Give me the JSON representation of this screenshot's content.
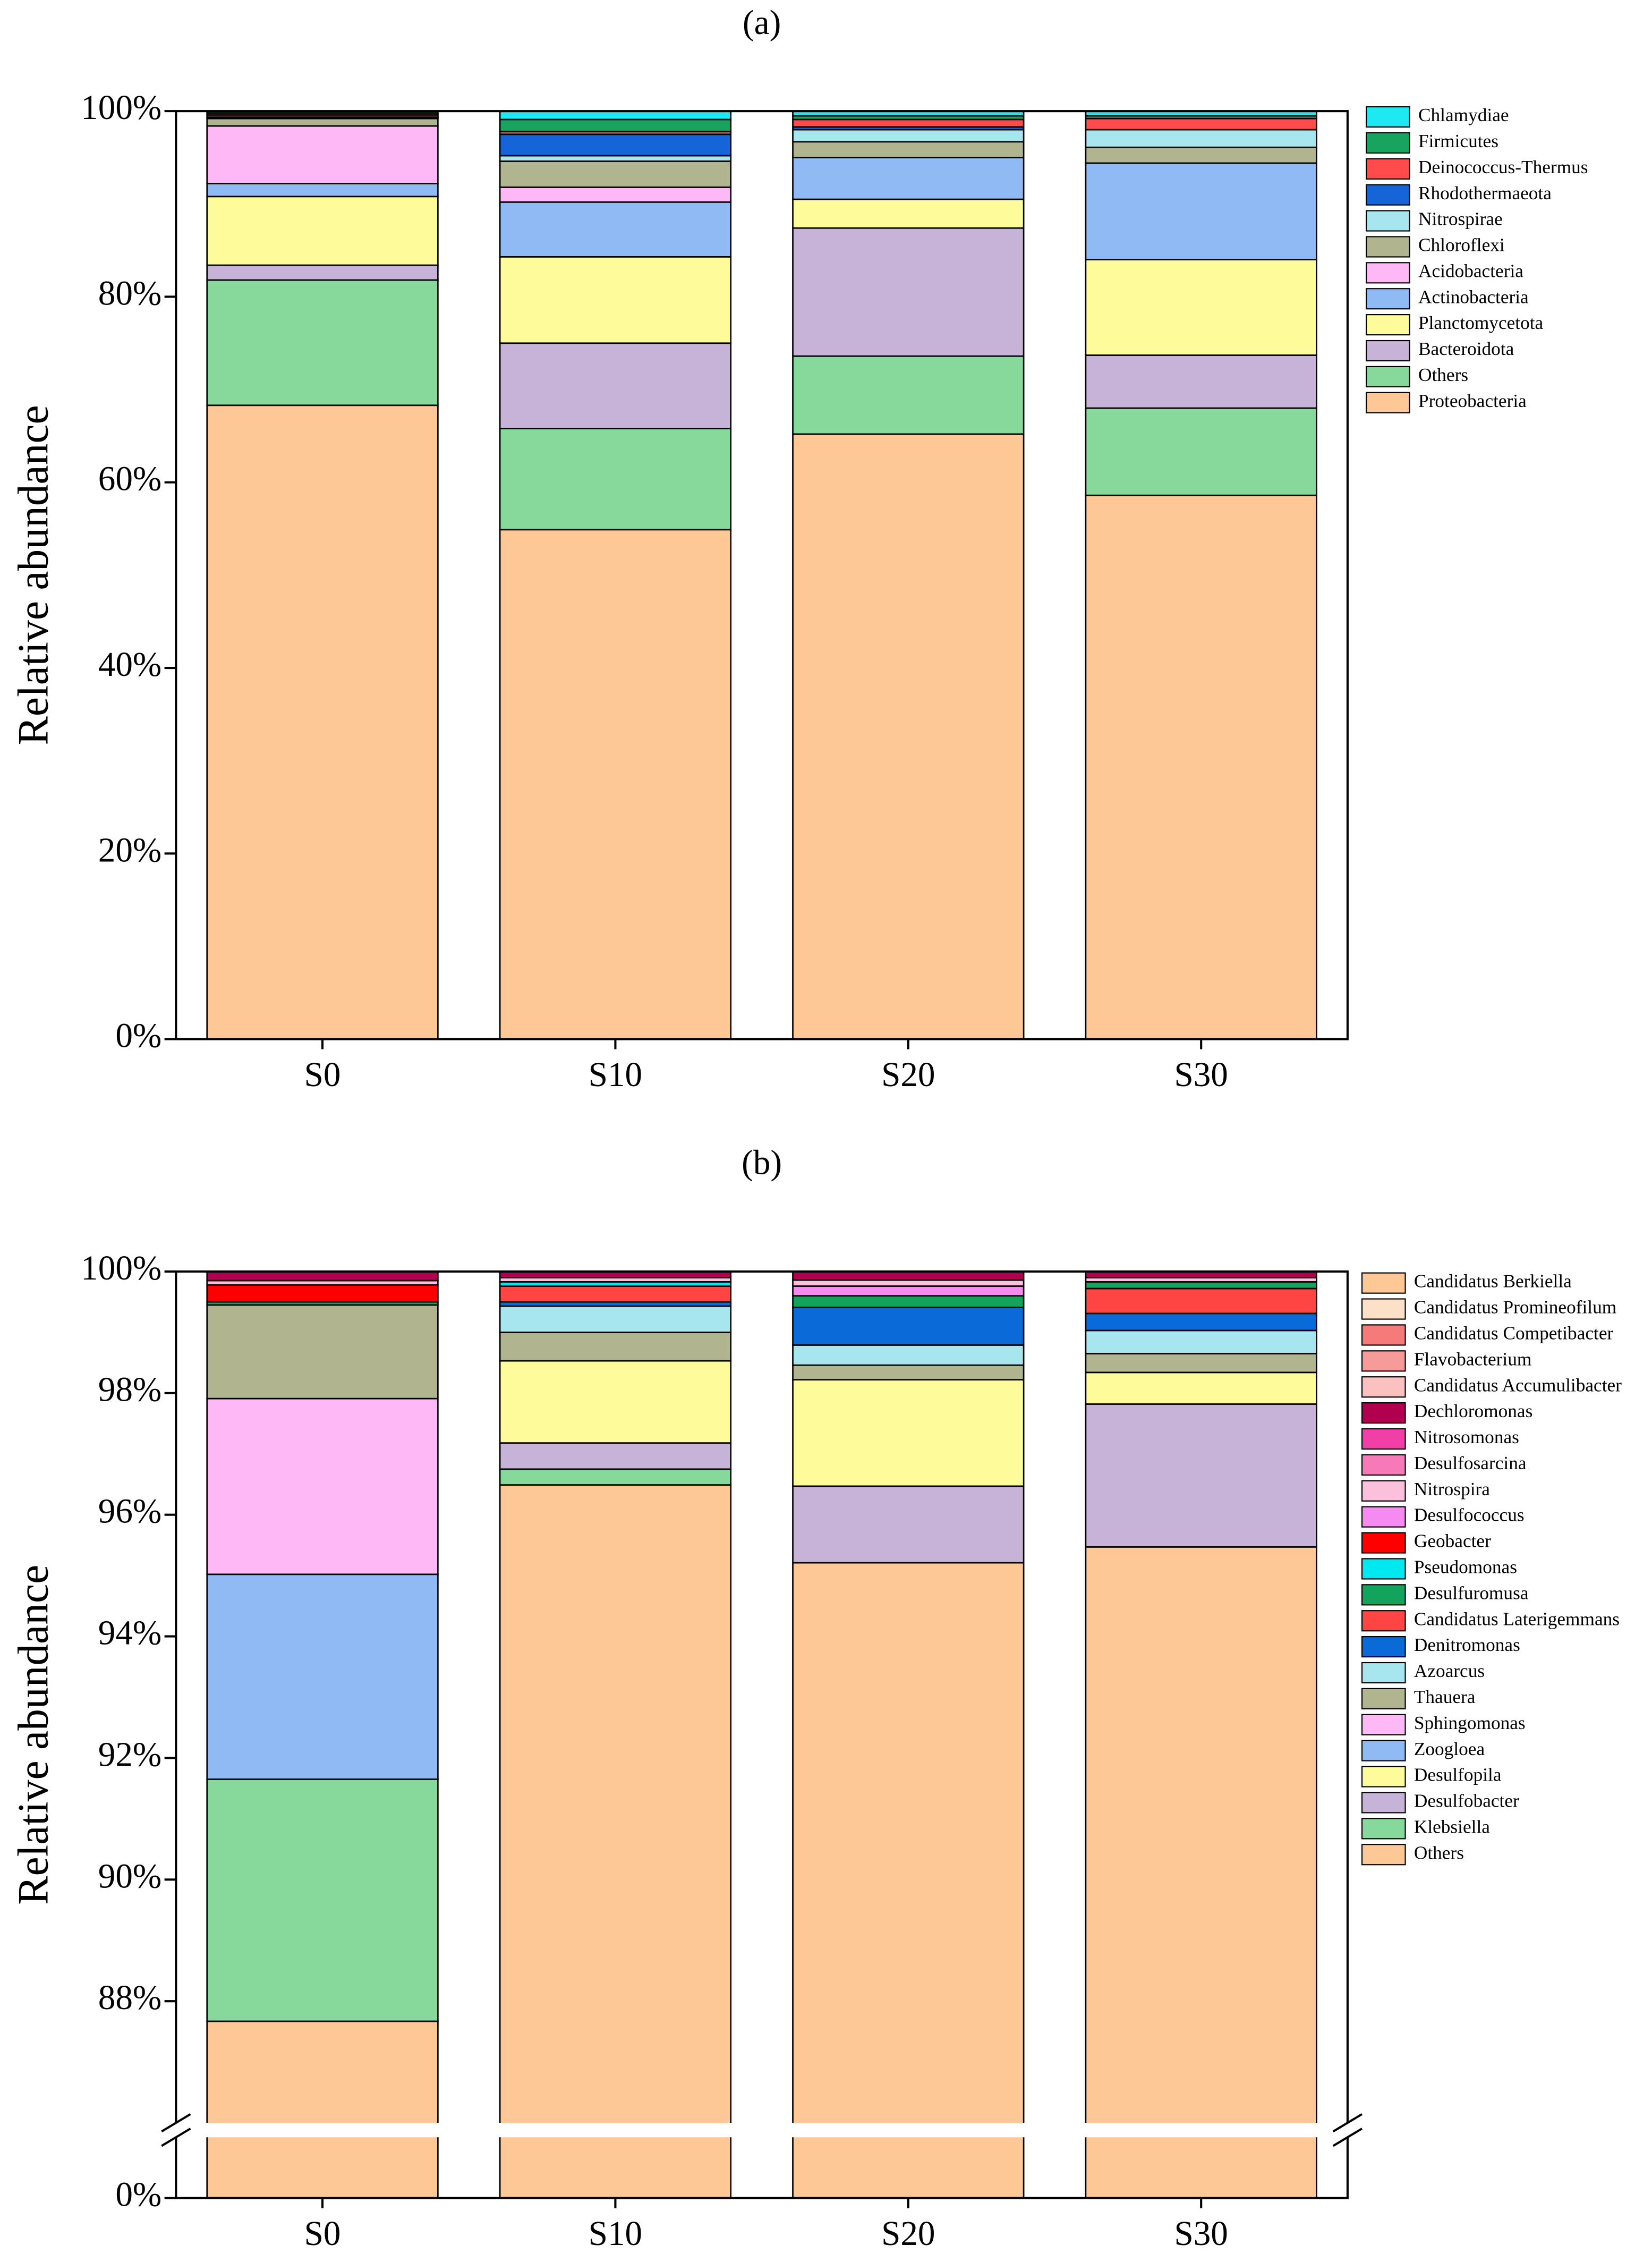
{
  "chart_data": [
    {
      "type": "stacked_bar",
      "title": "(a)",
      "y_label": "Relative abundance",
      "categories": [
        "S0",
        "S10",
        "S20",
        "S30"
      ],
      "ylim": [
        0,
        100
      ],
      "yticks": [
        {
          "value": 0,
          "label": "0%"
        },
        {
          "value": 20,
          "label": "20%"
        },
        {
          "value": 40,
          "label": "40%"
        },
        {
          "value": 60,
          "label": "60%"
        },
        {
          "value": 80,
          "label": "80%"
        },
        {
          "value": 100,
          "label": "100%"
        }
      ],
      "legend": "right",
      "series": [
        {
          "name": "Chlamydiae",
          "color": "#1ee8f2",
          "values": [
            0.1,
            0.9,
            0.5,
            0.5
          ]
        },
        {
          "name": "Firmicutes",
          "color": "#18a35e",
          "values": [
            0.2,
            1.3,
            0.4,
            0.3
          ]
        },
        {
          "name": "Deinococcus-Thermus",
          "color": "#ff4b4b",
          "values": [
            0.2,
            0.3,
            0.8,
            1.2
          ]
        },
        {
          "name": "Rhodothermaeota",
          "color": "#1565d8",
          "values": [
            0.2,
            2.3,
            0.3,
            0
          ]
        },
        {
          "name": "Nitrospirae",
          "color": "#a8e6ef",
          "values": [
            0.1,
            0.6,
            1.3,
            1.9
          ]
        },
        {
          "name": "Chloroflexi",
          "color": "#b0b48f",
          "values": [
            0.8,
            2.8,
            1.7,
            1.7
          ]
        },
        {
          "name": "Acidobacteria",
          "color": "#fdb8f5",
          "values": [
            6.2,
            1.6,
            0,
            0
          ]
        },
        {
          "name": "Actinobacteria",
          "color": "#8fbaf3",
          "values": [
            1.4,
            5.9,
            4.5,
            10.4
          ]
        },
        {
          "name": "Planctomycetota",
          "color": "#fefc9a",
          "values": [
            7.4,
            9.3,
            3.1,
            10.3
          ]
        },
        {
          "name": "Bacteroidota",
          "color": "#c8b3d8",
          "values": [
            1.6,
            9.2,
            13.8,
            5.7
          ]
        },
        {
          "name": "Others",
          "color": "#86d89b",
          "values": [
            13.5,
            10.9,
            8.4,
            9.4
          ]
        },
        {
          "name": "Proteobacteria",
          "color": "#fdc896",
          "values": [
            68.3,
            54.9,
            65.2,
            58.6
          ]
        }
      ]
    },
    {
      "type": "stacked_bar",
      "title": "(b)",
      "y_label": "Relative abundance",
      "categories": [
        "S0",
        "S10",
        "S20",
        "S30"
      ],
      "ylim": [
        0,
        100
      ],
      "y_axis_break": [
        1,
        86
      ],
      "yticks": [
        {
          "value": 0,
          "label": "0%"
        },
        {
          "value": 88,
          "label": "88%"
        },
        {
          "value": 90,
          "label": "90%"
        },
        {
          "value": 92,
          "label": "92%"
        },
        {
          "value": 94,
          "label": "94%"
        },
        {
          "value": 96,
          "label": "96%"
        },
        {
          "value": 98,
          "label": "98%"
        },
        {
          "value": 100,
          "label": "100%"
        }
      ],
      "legend": "right",
      "series": [
        {
          "name": "Candidatus Berkiella",
          "color": "#fdc896",
          "values": [
            0,
            0,
            0,
            0
          ]
        },
        {
          "name": "Candidatus Promineofilum",
          "color": "#fde0c8",
          "values": [
            0,
            0,
            0,
            0
          ]
        },
        {
          "name": "Candidatus Competibacter",
          "color": "#f77a7a",
          "values": [
            0,
            0,
            0,
            0
          ]
        },
        {
          "name": "Flavobacterium",
          "color": "#f79a9a",
          "values": [
            0,
            0,
            0,
            0
          ]
        },
        {
          "name": "Candidatus Accumulibacter",
          "color": "#fbc0c0",
          "values": [
            0,
            0,
            0,
            0
          ]
        },
        {
          "name": "Dechloromonas",
          "color": "#b0004f",
          "values": [
            0.15,
            0.1,
            0.14,
            0.1
          ]
        },
        {
          "name": "Nitrosomonas",
          "color": "#f23fa8",
          "values": [
            0,
            0,
            0,
            0
          ]
        },
        {
          "name": "Desulfosarcina",
          "color": "#f77ab8",
          "values": [
            0,
            0,
            0,
            0
          ]
        },
        {
          "name": "Nitrospira",
          "color": "#fcc0dc",
          "values": [
            0.07,
            0.07,
            0.1,
            0.07
          ]
        },
        {
          "name": "Desulfococcus",
          "color": "#f58af0",
          "values": [
            0,
            0,
            0.16,
            0
          ]
        },
        {
          "name": "Geobacter",
          "color": "#ff0000",
          "values": [
            0.28,
            0,
            0,
            0
          ]
        },
        {
          "name": "Pseudomonas",
          "color": "#00e8f0",
          "values": [
            0,
            0.07,
            0,
            0
          ]
        },
        {
          "name": "Desulfuromusa",
          "color": "#13a35c",
          "values": [
            0.05,
            0,
            0.19,
            0.11
          ]
        },
        {
          "name": "Candidatus Laterigemmans",
          "color": "#ff4444",
          "values": [
            0,
            0.26,
            0,
            0.41
          ]
        },
        {
          "name": "Denitromonas",
          "color": "#0a6ad8",
          "values": [
            0,
            0.07,
            0.62,
            0.28
          ]
        },
        {
          "name": "Azoarcus",
          "color": "#a8e6ef",
          "values": [
            0,
            0.43,
            0.33,
            0.38
          ]
        },
        {
          "name": "Thauera",
          "color": "#b0b48f",
          "values": [
            1.54,
            0.47,
            0.24,
            0.31
          ]
        },
        {
          "name": "Sphingomonas",
          "color": "#fdb8f5",
          "values": [
            2.89,
            0,
            0,
            0
          ]
        },
        {
          "name": "Zoogloea",
          "color": "#8fbaf3",
          "values": [
            3.37,
            0,
            0,
            0
          ]
        },
        {
          "name": "Desulfopila",
          "color": "#fefc9a",
          "values": [
            0,
            1.35,
            1.75,
            0.52
          ]
        },
        {
          "name": "Desulfobacter",
          "color": "#c8b3d8",
          "values": [
            0,
            0.43,
            1.26,
            2.35
          ]
        },
        {
          "name": "Klebsiella",
          "color": "#86d89b",
          "values": [
            3.98,
            0.26,
            0,
            0
          ]
        },
        {
          "name": "Others",
          "color": "#fdc896",
          "values": [
            87.67,
            96.49,
            95.21,
            95.47
          ]
        }
      ]
    }
  ]
}
